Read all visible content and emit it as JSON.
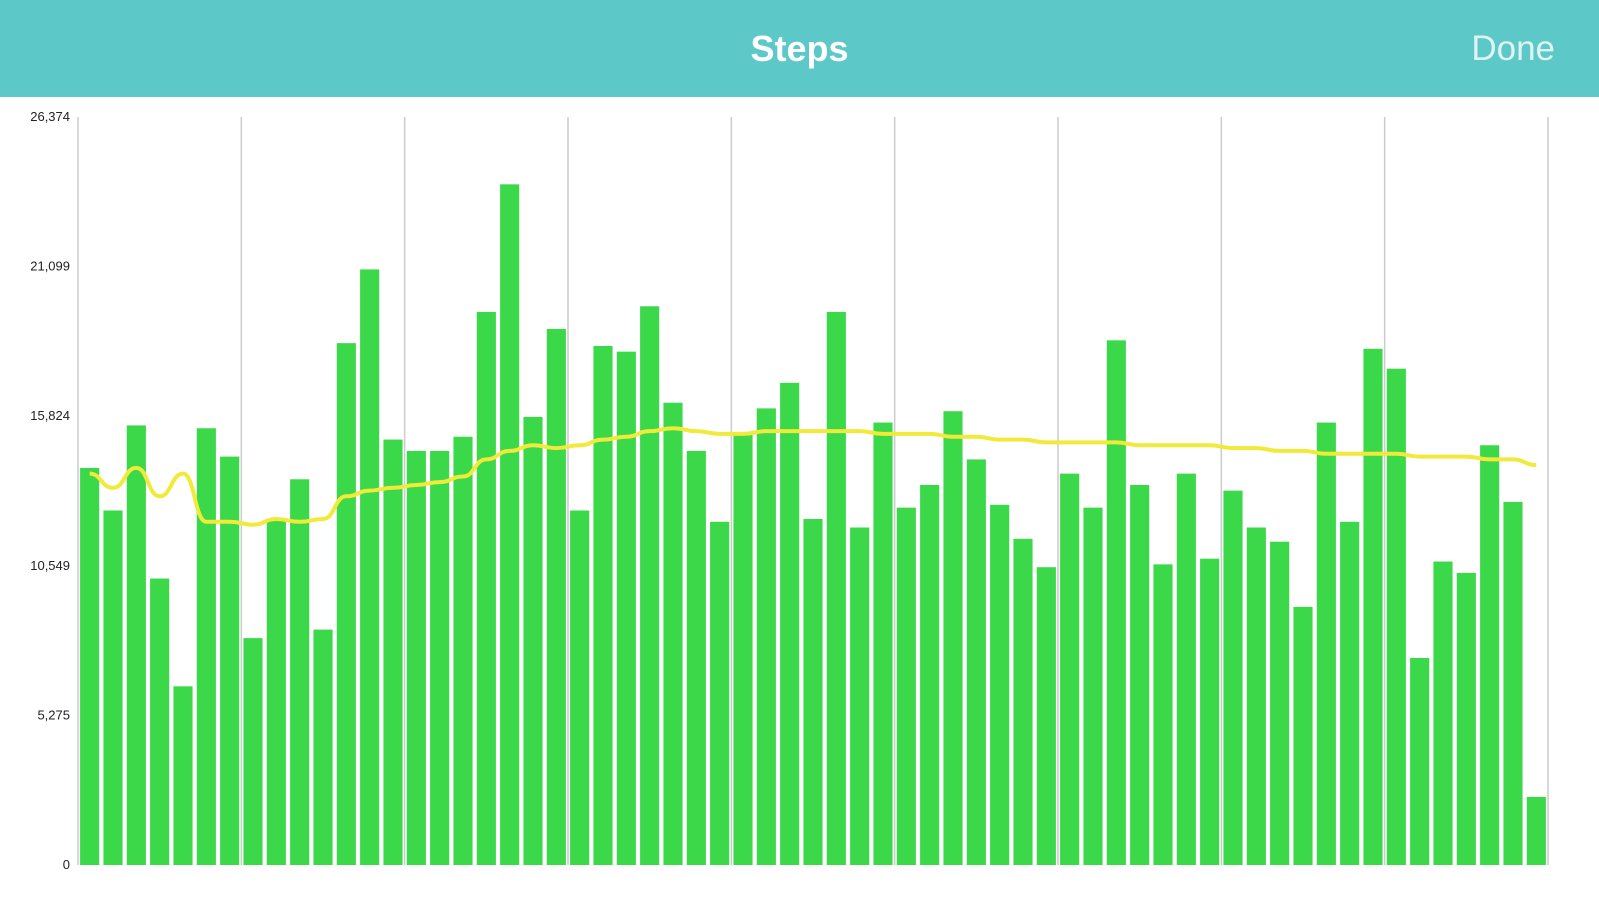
{
  "header": {
    "title": "Steps",
    "done_label": "Done"
  },
  "colors": {
    "header_bg": "#5cc9c8",
    "bar": "#3bd84a",
    "trend_line": "#f1ea3a",
    "gridline": "#cccccc"
  },
  "chart_data": {
    "type": "bar",
    "title": "",
    "xlabel": "",
    "ylabel": "",
    "ylim": [
      0,
      26374
    ],
    "y_ticks": [
      "0",
      "5,275",
      "10,549",
      "15,824",
      "21,099",
      "26,374"
    ],
    "grid": "vertical",
    "series": [
      {
        "values": [
          14000,
          12500,
          15500,
          10100,
          6300,
          15400,
          14400,
          8000,
          12200,
          13600,
          8300,
          18400,
          21000,
          15000,
          14600,
          14600,
          15100,
          19500,
          24000,
          15800,
          18900,
          12500,
          18300,
          18100,
          19700,
          16300,
          14600,
          12100,
          15200,
          16100,
          17000,
          12200,
          19500,
          11900,
          15600,
          12600,
          13400,
          16000,
          14300,
          12700,
          11500,
          10500,
          13800,
          12600,
          18500,
          13400,
          10600,
          13800,
          10800,
          13200,
          11900,
          11400,
          9100,
          15600,
          12100,
          18200,
          17500,
          7300,
          10700,
          10300,
          14800,
          12800,
          2400
        ]
      },
      {
        "type": "line",
        "values": [
          13800,
          13300,
          14000,
          13000,
          13800,
          12100,
          12100,
          12000,
          12200,
          12100,
          12200,
          13000,
          13200,
          13300,
          13400,
          13500,
          13700,
          14300,
          14600,
          14800,
          14700,
          14800,
          15000,
          15100,
          15300,
          15400,
          15300,
          15200,
          15200,
          15300,
          15300,
          15300,
          15300,
          15300,
          15200,
          15200,
          15200,
          15100,
          15100,
          15000,
          15000,
          14900,
          14900,
          14900,
          14900,
          14800,
          14800,
          14800,
          14800,
          14700,
          14700,
          14600,
          14600,
          14500,
          14500,
          14500,
          14500,
          14400,
          14400,
          14400,
          14300,
          14300,
          14100
        ]
      }
    ]
  }
}
